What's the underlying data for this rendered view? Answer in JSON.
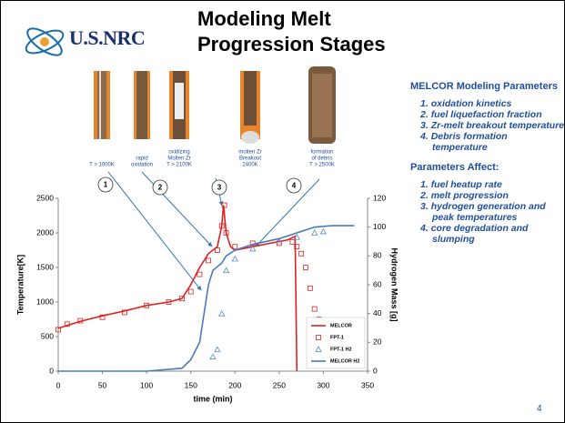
{
  "slide": {
    "logo": "U.S.NRC",
    "title": "Modeling Melt Progression Stages",
    "stages": [
      {
        "lines": [
          "T > 1000K"
        ]
      },
      {
        "lines": [
          "rapid",
          "oxidation"
        ]
      },
      {
        "lines": [
          "oxidizing",
          "Molten Zr",
          "T > 2100K"
        ]
      },
      {
        "lines": [
          "molten Zr",
          "Breakout",
          "2400K"
        ]
      },
      {
        "lines": [
          "formation",
          "of debris",
          "T > 2500K"
        ]
      }
    ],
    "stage_numbers": [
      "1",
      "2",
      "3",
      "4"
    ],
    "parameters_heading": "MELCOR Modeling Parameters",
    "parameters": [
      {
        "number": "1.",
        "text": "oxidation kinetics"
      },
      {
        "number": "2.",
        "text": "fuel liquefaction fraction"
      },
      {
        "number": "3.",
        "text": "Zr-melt breakout temperature"
      },
      {
        "number": "4.",
        "text": "Debris formation temperature"
      }
    ],
    "affect_heading": "Parameters Affect:",
    "affects": [
      {
        "number": "1.",
        "text": "fuel heatup rate"
      },
      {
        "number": "2.",
        "text": "melt progression"
      },
      {
        "number": "3.",
        "text": "hydrogen generation and peak temperatures"
      },
      {
        "number": "4.",
        "text": "core degradation and slumping"
      }
    ],
    "page_number": "4"
  },
  "chart_data": {
    "type": "line",
    "x_label": "time (min)",
    "y_label": "Temperature[K]",
    "y2_label": "Hydrogen Mass [g]",
    "xlim": [
      0,
      350
    ],
    "xticks": [
      0,
      50,
      100,
      150,
      200,
      250,
      300,
      350
    ],
    "ylim": [
      0,
      2500
    ],
    "yticks": [
      0,
      500,
      1000,
      1500,
      2000,
      2500
    ],
    "y2lim": [
      0,
      120
    ],
    "y2ticks": [
      0,
      20,
      40,
      60,
      80,
      100,
      120
    ],
    "grid": false,
    "legend": "lower right",
    "series": [
      {
        "name": "MELCOR",
        "color": "#e02020",
        "marker": "line",
        "x": [
          0,
          25,
          50,
          75,
          100,
          125,
          140,
          150,
          160,
          170,
          180,
          185,
          187,
          190,
          195,
          200,
          220,
          240,
          260,
          268,
          270
        ],
        "values": [
          620,
          720,
          800,
          870,
          950,
          1000,
          1050,
          1250,
          1500,
          1700,
          1800,
          2100,
          2400,
          2000,
          1800,
          1750,
          1800,
          1850,
          1900,
          1950,
          0
        ]
      },
      {
        "name": "FPT-1",
        "color": "#e02020",
        "marker": "square",
        "x": [
          0,
          10,
          25,
          50,
          75,
          100,
          125,
          140,
          150,
          160,
          170,
          180,
          185,
          188,
          190,
          200,
          220,
          250,
          265,
          270,
          275,
          280,
          285,
          290,
          295
        ],
        "values": [
          600,
          680,
          730,
          780,
          850,
          950,
          1000,
          1050,
          1150,
          1400,
          1600,
          1750,
          2100,
          2400,
          2000,
          1800,
          1850,
          1850,
          1870,
          1800,
          1700,
          1500,
          1200,
          900,
          750
        ]
      },
      {
        "name": "FPT-1 H2",
        "color": "#5b8bc9",
        "marker": "triangle",
        "axis": "y2",
        "x": [
          175,
          180,
          185,
          190,
          200,
          220,
          250,
          270,
          290,
          300
        ],
        "values": [
          10,
          15,
          40,
          70,
          78,
          85,
          90,
          93,
          96,
          97
        ]
      },
      {
        "name": "MELCOR H2",
        "color": "#4a7ab8",
        "marker": "line",
        "axis": "y2",
        "x": [
          0,
          100,
          140,
          150,
          160,
          165,
          170,
          175,
          185,
          190,
          200,
          220,
          250,
          270,
          290,
          310,
          335
        ],
        "values": [
          0,
          0,
          2,
          8,
          20,
          40,
          60,
          70,
          75,
          80,
          84,
          88,
          92,
          96,
          100,
          101,
          101
        ]
      }
    ]
  }
}
